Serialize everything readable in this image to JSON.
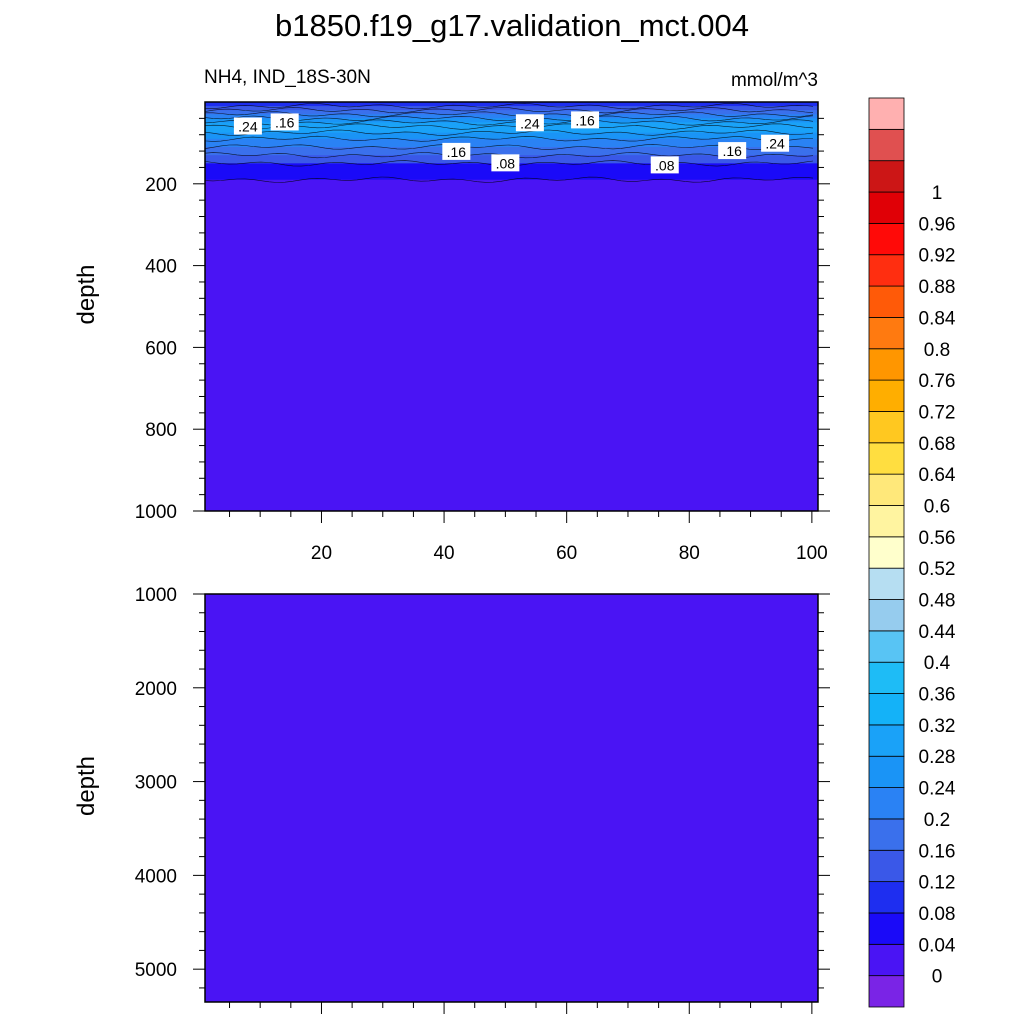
{
  "chart_data": {
    "type": "heatmap",
    "title": "b1850.f19_g17.validation_mct.004",
    "subtitle_left": "NH4, IND_18S-30N",
    "subtitle_right": "mmol/m^3",
    "x_ticks": [
      "20",
      "40",
      "60",
      "80",
      "100"
    ],
    "x_tick_values": [
      20,
      40,
      60,
      80,
      100
    ],
    "x_range": [
      1,
      101
    ],
    "panels": [
      {
        "name": "upper",
        "ylabel": "depth",
        "ylim": [
          0,
          1000
        ],
        "y_ticks": [
          "200",
          "400",
          "600",
          "800",
          "1000"
        ],
        "y_tick_values": [
          200,
          400,
          600,
          800,
          1000
        ],
        "layers": [
          {
            "depth_top": 0,
            "depth_bottom": 10,
            "value": 0.1
          },
          {
            "depth_top": 10,
            "depth_bottom": 20,
            "value": 0.14
          },
          {
            "depth_top": 20,
            "depth_bottom": 30,
            "value": 0.18
          },
          {
            "depth_top": 30,
            "depth_bottom": 40,
            "value": 0.22
          },
          {
            "depth_top": 40,
            "depth_bottom": 50,
            "value": 0.26
          },
          {
            "depth_top": 50,
            "depth_bottom": 60,
            "value": 0.3
          },
          {
            "depth_top": 60,
            "depth_bottom": 75,
            "value": 0.28
          },
          {
            "depth_top": 75,
            "depth_bottom": 90,
            "value": 0.24
          },
          {
            "depth_top": 90,
            "depth_bottom": 110,
            "value": 0.2
          },
          {
            "depth_top": 110,
            "depth_bottom": 130,
            "value": 0.16
          },
          {
            "depth_top": 130,
            "depth_bottom": 150,
            "value": 0.12
          },
          {
            "depth_top": 150,
            "depth_bottom": 190,
            "value": 0.06
          },
          {
            "depth_top": 190,
            "depth_bottom": 1000,
            "value": 0.02
          }
        ],
        "contour_labels": [
          {
            "text": ".24",
            "x": 8,
            "depth": 60
          },
          {
            "text": ".16",
            "x": 14,
            "depth": 50
          },
          {
            "text": ".24",
            "x": 54,
            "depth": 52
          },
          {
            "text": ".16",
            "x": 63,
            "depth": 45
          },
          {
            "text": ".16",
            "x": 42,
            "depth": 122
          },
          {
            "text": ".08",
            "x": 50,
            "depth": 150
          },
          {
            "text": ".08",
            "x": 76,
            "depth": 155
          },
          {
            "text": ".16",
            "x": 87,
            "depth": 120
          },
          {
            "text": ".24",
            "x": 94,
            "depth": 102
          }
        ]
      },
      {
        "name": "lower",
        "ylabel": "depth",
        "ylim": [
          1000,
          5350
        ],
        "y_ticks": [
          "1000",
          "2000",
          "3000",
          "4000",
          "5000"
        ],
        "y_tick_values": [
          1000,
          2000,
          3000,
          4000,
          5000
        ],
        "layers": [
          {
            "depth_top": 1000,
            "depth_bottom": 5350,
            "value": 0.02
          }
        ],
        "contour_labels": []
      }
    ],
    "colorbar": {
      "labels": [
        "0",
        "0.04",
        "0.08",
        "0.12",
        "0.16",
        "0.2",
        "0.24",
        "0.28",
        "0.32",
        "0.36",
        "0.4",
        "0.44",
        "0.48",
        "0.52",
        "0.56",
        "0.6",
        "0.64",
        "0.68",
        "0.72",
        "0.76",
        "0.8",
        "0.84",
        "0.88",
        "0.92",
        "0.96",
        "1"
      ],
      "levels": [
        0,
        0.04,
        0.08,
        0.12,
        0.16,
        0.2,
        0.24,
        0.28,
        0.32,
        0.36,
        0.4,
        0.44,
        0.48,
        0.52,
        0.56,
        0.6,
        0.64,
        0.68,
        0.72,
        0.76,
        0.8,
        0.84,
        0.88,
        0.92,
        0.96,
        1
      ],
      "colors": [
        "#7a24e6",
        "#4a14f4",
        "#1a0af8",
        "#1e2ef0",
        "#3a58e8",
        "#3a70ec",
        "#2a82f4",
        "#1a94f6",
        "#1aa2f8",
        "#14b2f8",
        "#1ebcf6",
        "#58c4f4",
        "#96ccee",
        "#b6def2",
        "#ffffcc",
        "#fff4a0",
        "#ffe87a",
        "#ffde40",
        "#ffc820",
        "#ffae00",
        "#ff9600",
        "#ff7a10",
        "#ff5a08",
        "#ff2e10",
        "#ff0a08",
        "#e00006",
        "#cc1616",
        "#e05050",
        "#ffb0b0"
      ]
    },
    "grid": false
  }
}
